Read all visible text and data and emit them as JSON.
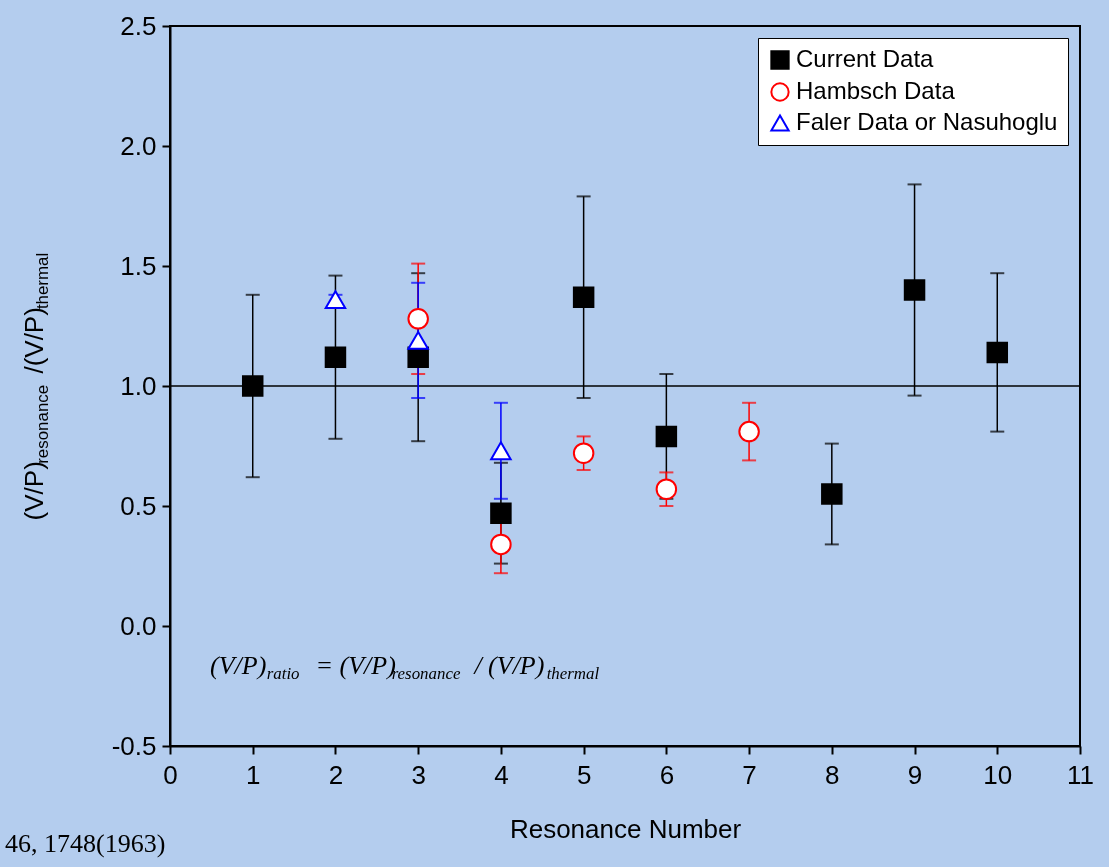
{
  "chart_data": {
    "type": "scatter",
    "xlabel": "Resonance Number",
    "ylabel": "(V/P)$_{resonance}$/(V/P)$_{thermal}$",
    "xlim": [
      0,
      11
    ],
    "xticks": [
      0,
      1,
      2,
      3,
      4,
      5,
      6,
      7,
      8,
      9,
      10,
      11
    ],
    "ylim": [
      -0.5,
      2.5
    ],
    "yticks": [
      {
        "value": -0.5,
        "label": "-0.5"
      },
      {
        "value": 0,
        "label": "0.0"
      },
      {
        "value": 0.5,
        "label": "0.5"
      },
      {
        "value": 1,
        "label": "1.0"
      },
      {
        "value": 1.5,
        "label": "1.5"
      },
      {
        "value": 2,
        "label": "2.0"
      },
      {
        "value": 2.5,
        "label": "2.5"
      }
    ],
    "grid": false,
    "legend": "top right",
    "series": [
      {
        "name": "Current Data",
        "color": "#000000",
        "marker": "square",
        "x": [
          1,
          2,
          3,
          4,
          5,
          6,
          8,
          9,
          10
        ],
        "values": [
          1.0,
          1.12,
          1.12,
          0.47,
          1.37,
          0.79,
          0.55,
          1.4,
          1.14
        ],
        "errors": [
          0.38,
          0.34,
          0.35,
          0.21,
          0.42,
          0.26,
          0.21,
          0.44,
          0.33
        ]
      },
      {
        "name": "Hambsch Data",
        "color": "#ff0000",
        "marker": "circle",
        "x": [
          3,
          4,
          5,
          6,
          7
        ],
        "values": [
          1.28,
          0.34,
          0.72,
          0.57,
          0.81
        ],
        "errors": [
          0.23,
          0.12,
          0.07,
          0.07,
          0.12
        ]
      },
      {
        "name": "Faler Data or Nasuhoglu",
        "color": "#0000ff",
        "marker": "triangle",
        "x": [
          2,
          3,
          4
        ],
        "values": [
          1.36,
          1.19,
          0.73
        ],
        "errors": [
          0.02,
          0.24,
          0.2
        ]
      }
    ],
    "ref_lines": [
      {
        "axis": "y",
        "value": 1,
        "color": "#000000"
      }
    ],
    "annotations": [
      "(V/P)$_{ratio}$ = (V/P)$_{resonance}$ / (V/P)$_{thermal}$",
      "46, 1748(1963)"
    ]
  }
}
